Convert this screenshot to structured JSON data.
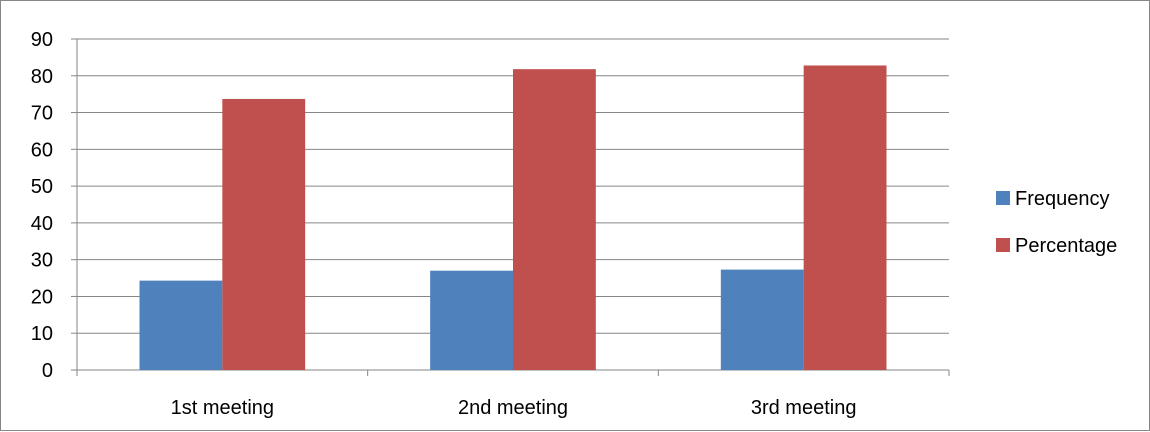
{
  "chart_data": {
    "type": "bar",
    "categories": [
      "1st meeting",
      "2nd meeting",
      "3rd meeting"
    ],
    "series": [
      {
        "name": "Frequency",
        "values": [
          24.3,
          27,
          27.3
        ],
        "color": "#4F81BD"
      },
      {
        "name": "Percentage",
        "values": [
          73.7,
          81.8,
          82.8
        ],
        "color": "#C0504D"
      }
    ],
    "yticks": [
      0,
      10,
      20,
      30,
      40,
      50,
      60,
      70,
      80,
      90
    ],
    "ylim": [
      0,
      90
    ],
    "grid": true,
    "legend_position": "right"
  }
}
